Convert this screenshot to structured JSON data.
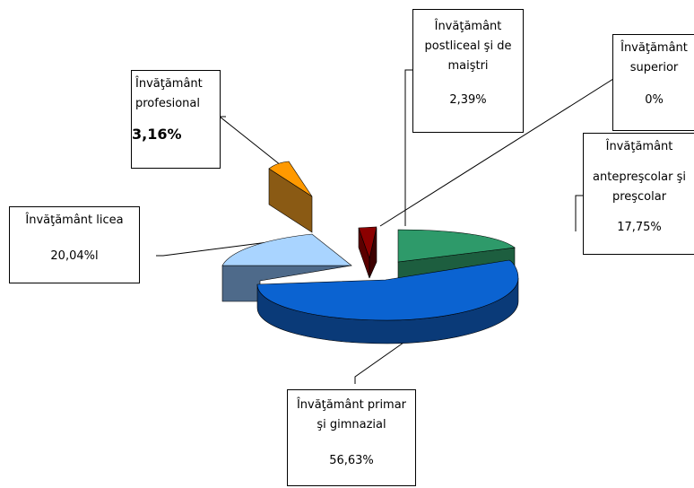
{
  "chart_data": {
    "type": "pie",
    "slices": [
      {
        "label": "Învăţământ antepreşcolar şi preşcolar",
        "value_text": "17,75%",
        "value": 17.75,
        "color": "#2e9a6a",
        "side": "#1d5e3f"
      },
      {
        "label": "Învăţământ primar şi gimnazial",
        "value_text": "56,63%",
        "value": 56.63,
        "color": "#0b63d1",
        "side": "#0a3a78"
      },
      {
        "label": "Învăţământ licea",
        "value_text": "20,04%l",
        "value": 20.04,
        "color": "#a9d4ff",
        "side": "#4e6a8a"
      },
      {
        "label": "Învăţământ profesional",
        "value_text": "3,16%",
        "value": 3.16,
        "color": "#ff9900",
        "side": "#8a5a14"
      },
      {
        "label": "Învăţământ postliceal şi de maiştri",
        "value_text": "2,39%",
        "value": 2.39,
        "color": "#8b0000",
        "side": "#5a0000"
      },
      {
        "label": "Învăţământ superior",
        "value_text": "0%",
        "value": 0,
        "color": "#cccccc",
        "side": "#888888"
      }
    ]
  },
  "labels": {
    "presc_t1": "Învăţământ",
    "presc_t2": "antepreşcolar şi",
    "presc_t3": "preşcolar",
    "presc_v": "17,75%",
    "primar_t1": "Învăţământ primar",
    "primar_t2": "şi gimnazial",
    "primar_v": "56,63%",
    "licea_t": "Învăţământ licea",
    "licea_v": "20,04%l",
    "prof_t1": "Învăţământ",
    "prof_t2": "profesional",
    "prof_v": "3,16%",
    "postl_t1": "Învăţământ",
    "postl_t2": "postliceal şi de",
    "postl_t3": "maiştri",
    "postl_v": "2,39%",
    "sup_t1": "Învăţământ",
    "sup_t2": "superior",
    "sup_v": "0%"
  }
}
